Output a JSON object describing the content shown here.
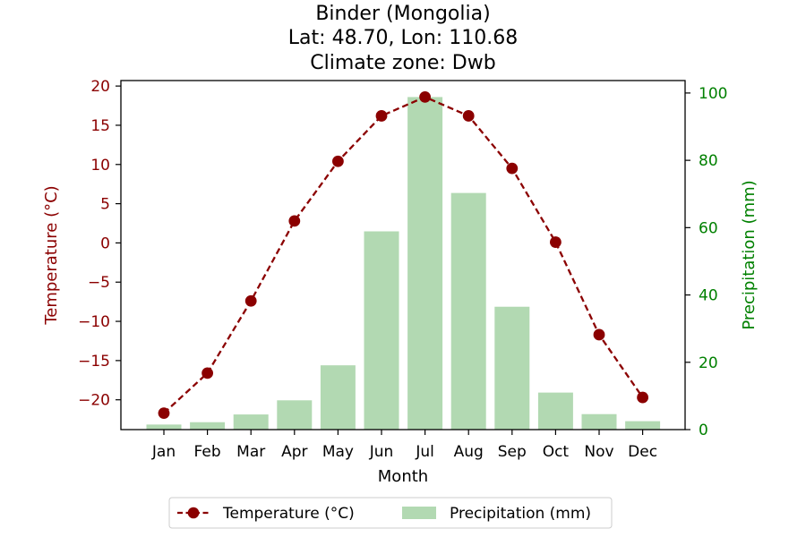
{
  "chart_data": {
    "type": "bar+line",
    "title_lines": [
      "Binder (Mongolia)",
      "Lat: 48.70, Lon: 110.68",
      "Climate zone: Dwb"
    ],
    "xlabel": "Month",
    "categories": [
      "Jan",
      "Feb",
      "Mar",
      "Apr",
      "May",
      "Jun",
      "Jul",
      "Aug",
      "Sep",
      "Oct",
      "Nov",
      "Dec"
    ],
    "temperature": {
      "name": "Temperature (°C)",
      "axis_label": "Temperature (°C)",
      "values": [
        -21.7,
        -16.6,
        -7.4,
        2.8,
        10.4,
        16.2,
        18.6,
        16.2,
        9.5,
        0.1,
        -11.7,
        -19.7
      ],
      "ylim": [
        -23.8,
        20.7
      ],
      "yticks": [
        20,
        15,
        10,
        5,
        0,
        -5,
        -10,
        -15,
        -20
      ],
      "ytick_labels": [
        "20",
        "15",
        "10",
        "5",
        "0",
        "−5",
        "−10",
        "−15",
        "−20"
      ],
      "color": "#8b0000",
      "style": "dashed line with circle markers"
    },
    "precipitation": {
      "name": "Precipitation (mm)",
      "axis_label": "Precipitation (mm)",
      "values": [
        1.5,
        2.2,
        4.5,
        8.7,
        19.1,
        58.9,
        98.8,
        70.3,
        36.5,
        11.0,
        4.6,
        2.5
      ],
      "ylim": [
        0,
        103.7
      ],
      "yticks": [
        0,
        20,
        40,
        60,
        80,
        100
      ],
      "color": "#b2d9b2",
      "axis_color": "#008000"
    },
    "legend": {
      "position": "bottom-center",
      "entries": [
        "Temperature (°C)",
        "Precipitation (mm)"
      ]
    },
    "grid": false
  }
}
